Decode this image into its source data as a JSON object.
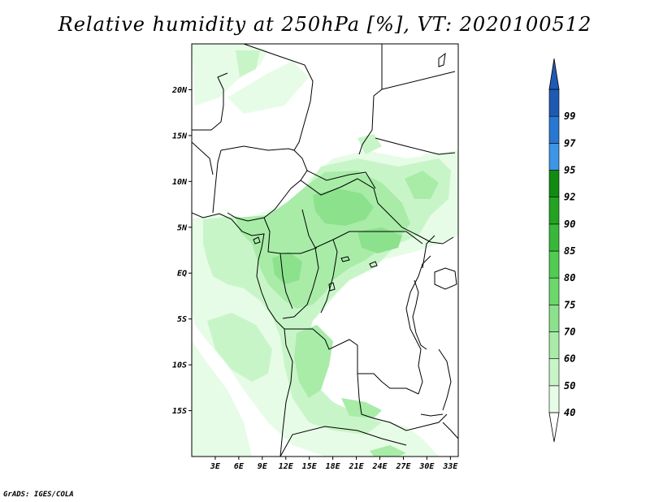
{
  "title": "Relative humidity at 250hPa [%], VT: 2020100512",
  "credit": "GrADS: IGES/COLA",
  "map": {
    "lon_range": [
      0,
      34
    ],
    "lat_range": [
      -20,
      25
    ],
    "lat_ticks": [
      {
        "value": 20,
        "label": "20N"
      },
      {
        "value": 15,
        "label": "15N"
      },
      {
        "value": 10,
        "label": "10N"
      },
      {
        "value": 5,
        "label": "5N"
      },
      {
        "value": 0,
        "label": "EQ"
      },
      {
        "value": -5,
        "label": "5S"
      },
      {
        "value": -10,
        "label": "10S"
      },
      {
        "value": -15,
        "label": "15S"
      }
    ],
    "lon_ticks": [
      {
        "value": 3,
        "label": "3E"
      },
      {
        "value": 6,
        "label": "6E"
      },
      {
        "value": 9,
        "label": "9E"
      },
      {
        "value": 12,
        "label": "12E"
      },
      {
        "value": 15,
        "label": "15E"
      },
      {
        "value": 18,
        "label": "18E"
      },
      {
        "value": 21,
        "label": "21E"
      },
      {
        "value": 24,
        "label": "24E"
      },
      {
        "value": 27,
        "label": "27E"
      },
      {
        "value": 30,
        "label": "30E"
      },
      {
        "value": 33,
        "label": "33E"
      }
    ]
  },
  "colorbar": {
    "bins": [
      {
        "from": 40,
        "to": 50,
        "color": "#e6fce6"
      },
      {
        "from": 50,
        "to": 60,
        "color": "#c8f5c8"
      },
      {
        "from": 60,
        "to": 70,
        "color": "#a8eca8"
      },
      {
        "from": 70,
        "to": 75,
        "color": "#8ce28c"
      },
      {
        "from": 75,
        "to": 80,
        "color": "#6cd86c"
      },
      {
        "from": 80,
        "to": 85,
        "color": "#50cc50"
      },
      {
        "from": 85,
        "to": 90,
        "color": "#38b838"
      },
      {
        "from": 90,
        "to": 92,
        "color": "#22a422"
      },
      {
        "from": 92,
        "to": 95,
        "color": "#108c10"
      },
      {
        "from": 95,
        "to": 97,
        "color": "#3c96e6"
      },
      {
        "from": 97,
        "to": 99,
        "color": "#2878d2"
      },
      {
        "from": 99,
        "to": 100,
        "color": "#1e5ab4"
      }
    ],
    "labels": [
      "40",
      "50",
      "60",
      "70",
      "75",
      "80",
      "85",
      "90",
      "92",
      "95",
      "97",
      "99"
    ],
    "under_color": "#ffffff",
    "over_color": "#1e5ab4"
  }
}
